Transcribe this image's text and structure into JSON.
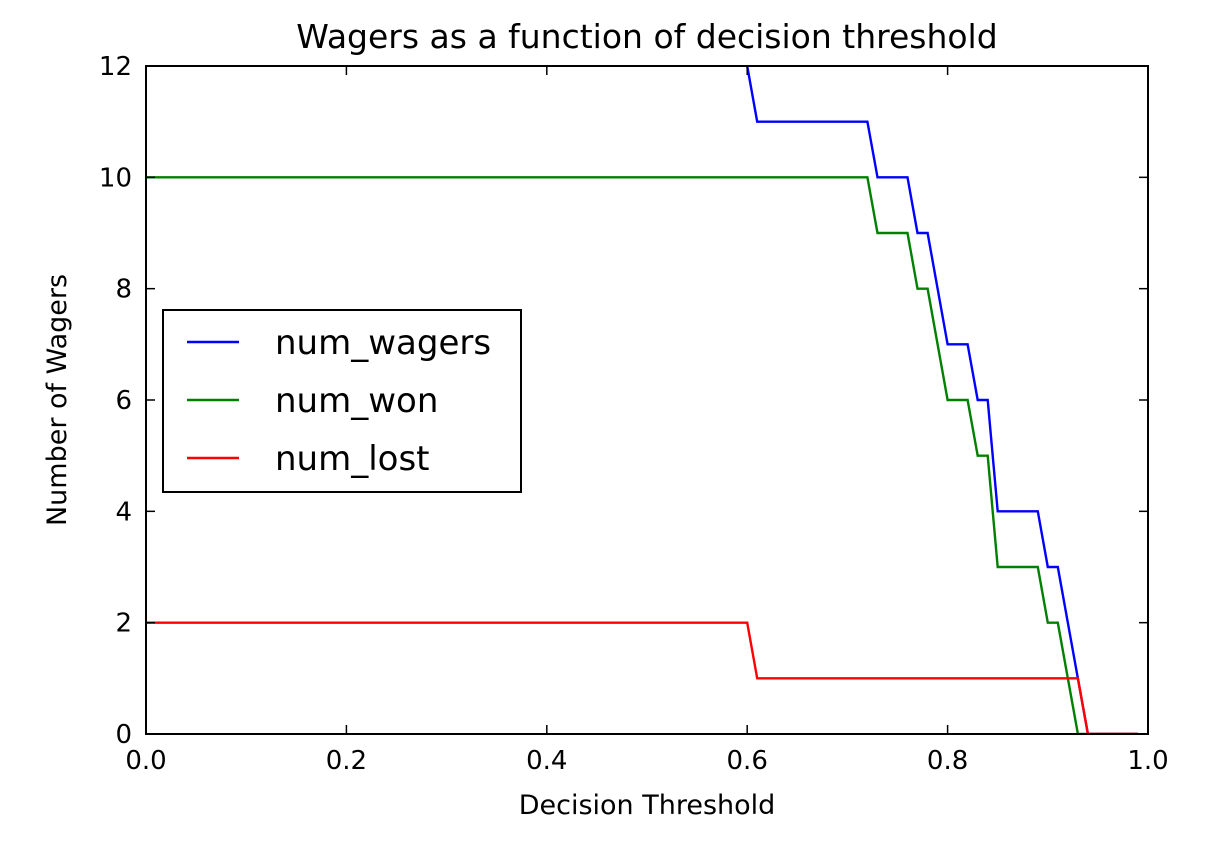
{
  "chart_data": {
    "type": "line",
    "title": "Wagers as a function of decision threshold",
    "xlabel": "Decision Threshold",
    "ylabel": "Number of Wagers",
    "xlim": [
      0.0,
      1.0
    ],
    "ylim": [
      0,
      12
    ],
    "xticks": [
      0.0,
      0.2,
      0.4,
      0.6,
      0.8,
      1.0
    ],
    "xtick_labels": [
      "0.0",
      "0.2",
      "0.4",
      "0.6",
      "0.8",
      "1.0"
    ],
    "yticks": [
      0,
      2,
      4,
      6,
      8,
      10,
      12
    ],
    "ytick_labels": [
      "0",
      "2",
      "4",
      "6",
      "8",
      "10",
      "12"
    ],
    "grid": false,
    "legend_position": "center-left",
    "series": [
      {
        "name": "num_wagers",
        "color": "#0000ff",
        "points": [
          [
            0.6,
            12.0
          ],
          [
            0.61,
            11
          ],
          [
            0.72,
            11
          ],
          [
            0.73,
            10
          ],
          [
            0.76,
            10
          ],
          [
            0.77,
            9
          ],
          [
            0.78,
            9
          ],
          [
            0.8,
            7
          ],
          [
            0.82,
            7
          ],
          [
            0.83,
            6
          ],
          [
            0.84,
            6
          ],
          [
            0.85,
            4
          ],
          [
            0.89,
            4
          ],
          [
            0.9,
            3
          ],
          [
            0.91,
            3
          ],
          [
            0.94,
            0
          ],
          [
            0.99,
            0
          ]
        ]
      },
      {
        "name": "num_won",
        "color": "#008000",
        "points": [
          [
            0.0,
            10
          ],
          [
            0.72,
            10
          ],
          [
            0.73,
            9
          ],
          [
            0.76,
            9
          ],
          [
            0.77,
            8
          ],
          [
            0.78,
            8
          ],
          [
            0.8,
            6
          ],
          [
            0.82,
            6
          ],
          [
            0.83,
            5
          ],
          [
            0.84,
            5
          ],
          [
            0.85,
            3
          ],
          [
            0.89,
            3
          ],
          [
            0.9,
            2
          ],
          [
            0.91,
            2
          ],
          [
            0.93,
            0
          ],
          [
            0.99,
            0
          ]
        ]
      },
      {
        "name": "num_lost",
        "color": "#ff0000",
        "points": [
          [
            0.0,
            2
          ],
          [
            0.6,
            2
          ],
          [
            0.61,
            1
          ],
          [
            0.93,
            1
          ],
          [
            0.94,
            0
          ],
          [
            0.99,
            0
          ]
        ]
      }
    ]
  }
}
